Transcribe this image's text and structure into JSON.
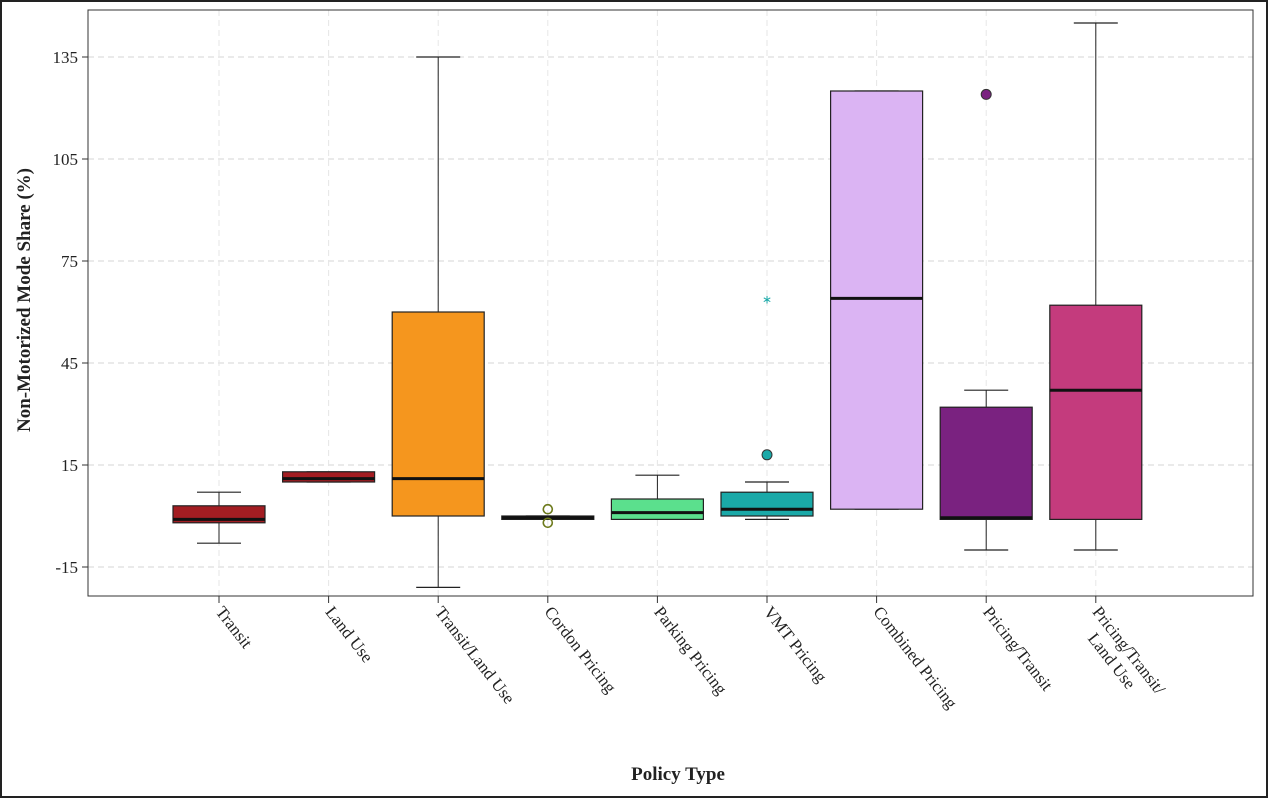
{
  "chart_data": {
    "type": "box",
    "title": "",
    "xlabel": "Policy Type",
    "ylabel": "Non-Motorized Mode Share (%)",
    "ylim": [
      -24,
      147
    ],
    "yticks": [
      -15,
      15,
      45,
      75,
      105,
      135
    ],
    "grid": true,
    "categories": [
      "Transit",
      "Land Use",
      "Transit/Land Use",
      "Cordon Pricing",
      "Parking Pricing",
      "VMT Pricing",
      "Combined Pricing",
      "Pricing/Transit",
      "Pricing/Transit/\nLand Use"
    ],
    "boxes": [
      {
        "category": "Transit",
        "whisker_low": -8,
        "q1": -2,
        "median": -1,
        "q3": 3,
        "whisker_high": 7,
        "color": "#a31d22",
        "outliers": []
      },
      {
        "category": "Land Use",
        "whisker_low": 10,
        "q1": 10,
        "median": 11,
        "q3": 13,
        "whisker_high": 13,
        "color": "#a31d22",
        "outliers": []
      },
      {
        "category": "Transit/Land Use",
        "whisker_low": -21,
        "q1": 0,
        "median": 11,
        "q3": 60,
        "whisker_high": 135,
        "color": "#f5961e",
        "outliers": []
      },
      {
        "category": "Cordon Pricing",
        "whisker_low": -1,
        "q1": -1,
        "median": -0.5,
        "q3": 0,
        "whisker_high": 0,
        "color": "#c8e64c",
        "outliers": [
          {
            "value": 2,
            "marker": "ring"
          },
          {
            "value": -2,
            "marker": "ring"
          }
        ]
      },
      {
        "category": "Parking Pricing",
        "whisker_low": -1,
        "q1": -1,
        "median": 1,
        "q3": 5,
        "whisker_high": 12,
        "color": "#5be08d",
        "outliers": []
      },
      {
        "category": "VMT Pricing",
        "whisker_low": -1,
        "q1": 0,
        "median": 2,
        "q3": 7,
        "whisker_high": 10,
        "color": "#1aa9a8",
        "outliers": [
          {
            "value": 18,
            "marker": "circle"
          },
          {
            "value": 64,
            "marker": "star"
          }
        ]
      },
      {
        "category": "Combined Pricing",
        "whisker_low": 2,
        "q1": 2,
        "median": 64,
        "q3": 125,
        "whisker_high": 125,
        "color": "#dbb4f3",
        "outliers": []
      },
      {
        "category": "Pricing/Transit",
        "whisker_low": -10,
        "q1": -1,
        "median": -0.5,
        "q3": 32,
        "whisker_high": 37,
        "color": "#7a2280",
        "outliers": [
          {
            "value": 124,
            "marker": "circle"
          }
        ]
      },
      {
        "category": "Pricing/Transit/\nLand Use",
        "whisker_low": -10,
        "q1": -1,
        "median": 37,
        "q3": 62,
        "whisker_high": 145,
        "color": "#c43b7d",
        "outliers": []
      }
    ]
  }
}
